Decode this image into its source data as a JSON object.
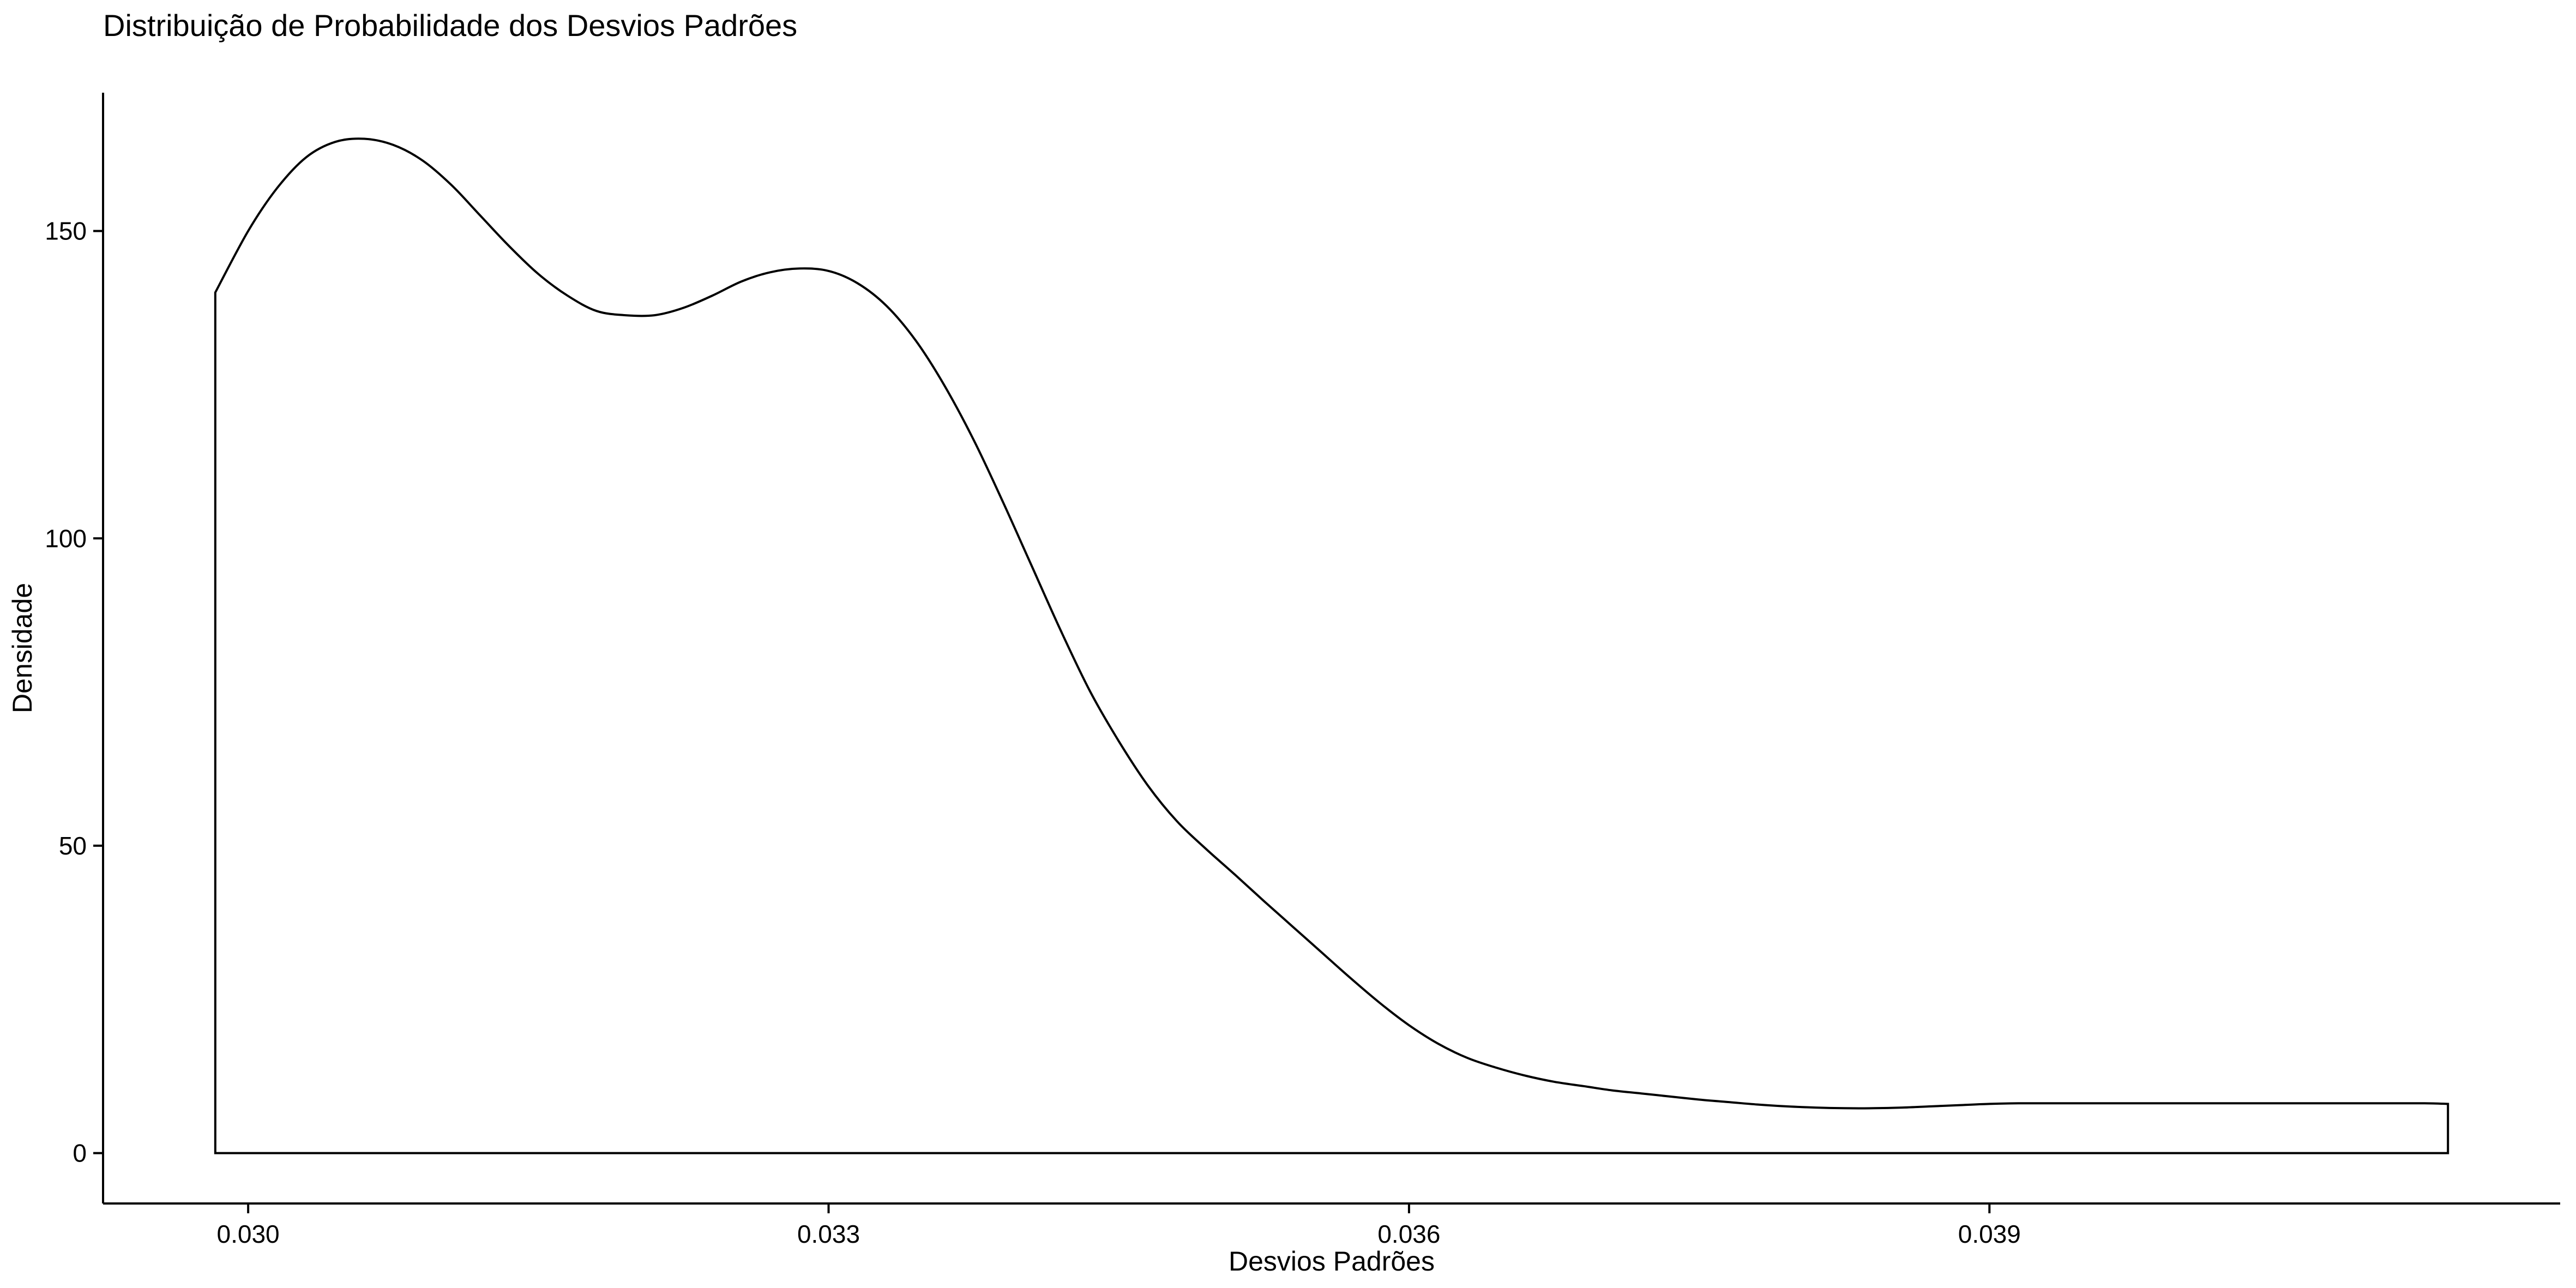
{
  "chart_data": {
    "type": "area",
    "title": "Distribuição de Probabilidade dos Desvios Padrões",
    "xlabel": "Desvios Padrões",
    "ylabel": "Densidade",
    "xlim": [
      0.02925,
      0.04195
    ],
    "ylim": [
      -8.2,
      172.5
    ],
    "xticks": [
      0.03,
      0.033,
      0.036,
      0.039
    ],
    "xtick_labels": [
      "0.030",
      "0.033",
      "0.036",
      "0.039"
    ],
    "yticks": [
      0,
      50,
      100,
      150
    ],
    "ytick_labels": [
      "0",
      "50",
      "100",
      "150"
    ],
    "grid": false,
    "legend": "none",
    "series": [
      {
        "color": "#000000",
        "x": [
          0.02983,
          0.03,
          0.03015,
          0.0303,
          0.03045,
          0.0306,
          0.03075,
          0.0309,
          0.03105,
          0.0312,
          0.03135,
          0.0315,
          0.03165,
          0.0318,
          0.03195,
          0.0321,
          0.03225,
          0.0324,
          0.03255,
          0.0327,
          0.03285,
          0.033,
          0.03315,
          0.0333,
          0.03345,
          0.0336,
          0.03375,
          0.0339,
          0.03405,
          0.0342,
          0.03435,
          0.0345,
          0.03465,
          0.0348,
          0.03495,
          0.0351,
          0.03525,
          0.0354,
          0.03555,
          0.0357,
          0.03585,
          0.036,
          0.03615,
          0.0363,
          0.03645,
          0.0366,
          0.03675,
          0.0369,
          0.03705,
          0.0372,
          0.03735,
          0.0375,
          0.03765,
          0.0378,
          0.03795,
          0.0381,
          0.03825,
          0.0384,
          0.03855,
          0.0387,
          0.03885,
          0.039,
          0.03915,
          0.0393,
          0.03945,
          0.0396,
          0.03975,
          0.0399,
          0.04005,
          0.0402,
          0.04035,
          0.0405,
          0.04065,
          0.0408,
          0.04095,
          0.0411,
          0.04125,
          0.04137
        ],
        "y": [
          140,
          150,
          157,
          162,
          164.5,
          165,
          164,
          161.5,
          157.5,
          152.5,
          147.5,
          143,
          139.5,
          137,
          136.3,
          136.3,
          137.5,
          139.5,
          141.8,
          143.3,
          143.9,
          143.5,
          141.5,
          137.8,
          132.2,
          124.8,
          116,
          106,
          95.5,
          85,
          75.2,
          67,
          59.8,
          54,
          49.5,
          45.3,
          41,
          36.8,
          32.6,
          28.4,
          24.4,
          20.8,
          17.8,
          15.5,
          13.9,
          12.6,
          11.6,
          10.9,
          10.2,
          9.7,
          9.2,
          8.7,
          8.3,
          7.9,
          7.6,
          7.4,
          7.3,
          7.3,
          7.4,
          7.6,
          7.8,
          8.0,
          8.1,
          8.1,
          8.1,
          8.1,
          8.1,
          8.1,
          8.1,
          8.1,
          8.1,
          8.1,
          8.1,
          8.1,
          8.1,
          8.1,
          8.1,
          8.0
        ]
      }
    ]
  }
}
